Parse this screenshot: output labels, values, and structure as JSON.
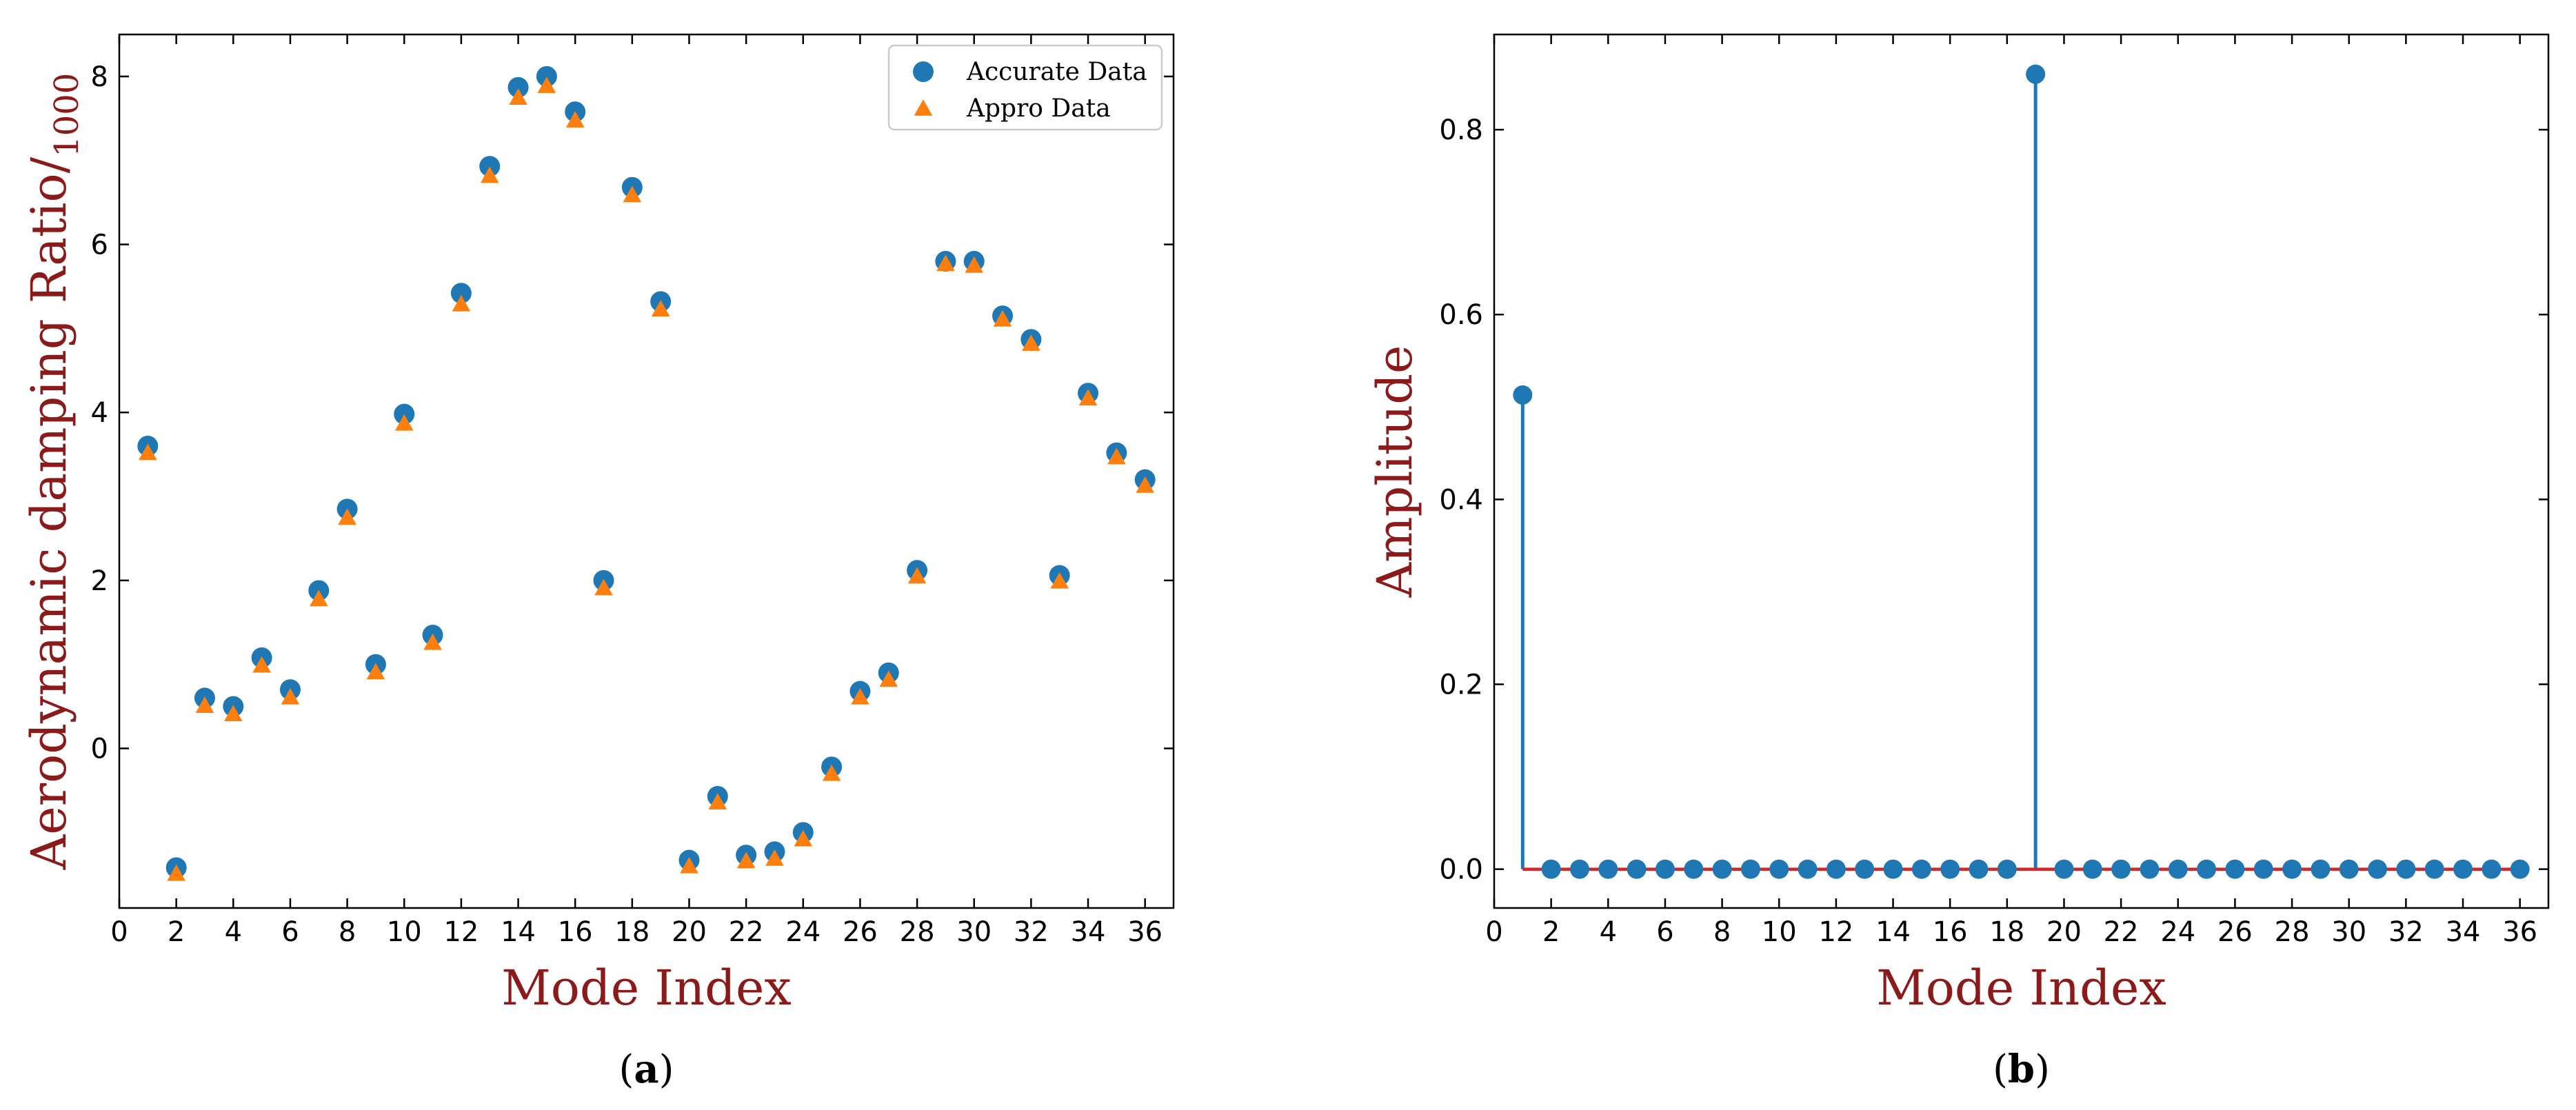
{
  "colors": {
    "accurate": "#1f77b4",
    "appro": "#ff7f0e",
    "baseline": "#d62728",
    "axis_title": "#8b1a1a"
  },
  "chart_data": [
    {
      "type": "scatter",
      "panel": "(a)",
      "panel_open": "(",
      "panel_letter": "a",
      "panel_close": ")",
      "xlabel": "Mode Index",
      "ylabel_main": "Aerodynamic damping Ratio/",
      "ylabel_sub": "1000",
      "xlim": [
        0,
        37
      ],
      "ylim": [
        -1.9,
        8.5
      ],
      "xticks": [
        0,
        2,
        4,
        6,
        8,
        10,
        12,
        14,
        16,
        18,
        20,
        22,
        24,
        26,
        28,
        30,
        32,
        34,
        36
      ],
      "yticks": [
        0,
        2,
        4,
        6,
        8
      ],
      "legend_position": "top-right",
      "x": [
        1,
        2,
        3,
        4,
        5,
        6,
        7,
        8,
        9,
        10,
        11,
        12,
        13,
        14,
        15,
        16,
        17,
        18,
        19,
        20,
        21,
        22,
        23,
        24,
        25,
        26,
        27,
        28,
        29,
        30,
        31,
        32,
        33,
        34,
        35,
        36
      ],
      "series": [
        {
          "name": "Accurate Data",
          "marker": "circle",
          "values": [
            3.6,
            -1.42,
            0.6,
            0.5,
            1.08,
            0.7,
            1.88,
            2.85,
            1.0,
            3.98,
            1.35,
            5.42,
            6.93,
            7.87,
            8.0,
            7.58,
            2.0,
            6.68,
            5.32,
            -1.33,
            -0.57,
            -1.27,
            -1.23,
            -1.0,
            -0.22,
            0.68,
            0.9,
            2.12,
            5.8,
            5.8,
            5.15,
            4.87,
            2.06,
            4.23,
            3.52,
            3.2
          ]
        },
        {
          "name": "Appro Data",
          "marker": "triangle",
          "values": [
            3.53,
            -1.48,
            0.52,
            0.42,
            1.0,
            0.62,
            1.79,
            2.76,
            0.92,
            3.88,
            1.27,
            5.3,
            6.83,
            7.76,
            7.9,
            7.49,
            1.92,
            6.6,
            5.24,
            -1.39,
            -0.63,
            -1.33,
            -1.3,
            -1.07,
            -0.29,
            0.62,
            0.83,
            2.06,
            5.78,
            5.76,
            5.12,
            4.83,
            2.0,
            4.18,
            3.48,
            3.14
          ]
        }
      ]
    },
    {
      "type": "stem",
      "panel": "(b)",
      "panel_open": "(",
      "panel_letter": "b",
      "panel_close": ")",
      "xlabel": "Mode Index",
      "ylabel": "Amplitude",
      "xlim": [
        0,
        37
      ],
      "ylim": [
        -0.042,
        0.903
      ],
      "xticks": [
        0,
        2,
        4,
        6,
        8,
        10,
        12,
        14,
        16,
        18,
        20,
        22,
        24,
        26,
        28,
        30,
        32,
        34,
        36
      ],
      "yticks": [
        0.0,
        0.2,
        0.4,
        0.6,
        0.8
      ],
      "ytick_labels": [
        "0.0",
        "0.2",
        "0.4",
        "0.6",
        "0.8"
      ],
      "baseline": 0,
      "x": [
        1,
        2,
        3,
        4,
        5,
        6,
        7,
        8,
        9,
        10,
        11,
        12,
        13,
        14,
        15,
        16,
        17,
        18,
        19,
        20,
        21,
        22,
        23,
        24,
        25,
        26,
        27,
        28,
        29,
        30,
        31,
        32,
        33,
        34,
        35,
        36
      ],
      "values": [
        0.513,
        0,
        0,
        0,
        0,
        0,
        0,
        0,
        0,
        0,
        0,
        0,
        0,
        0,
        0,
        0,
        0,
        0,
        0.86,
        0,
        0,
        0,
        0,
        0,
        0,
        0,
        0,
        0,
        0,
        0,
        0,
        0,
        0,
        0,
        0,
        0
      ]
    }
  ]
}
